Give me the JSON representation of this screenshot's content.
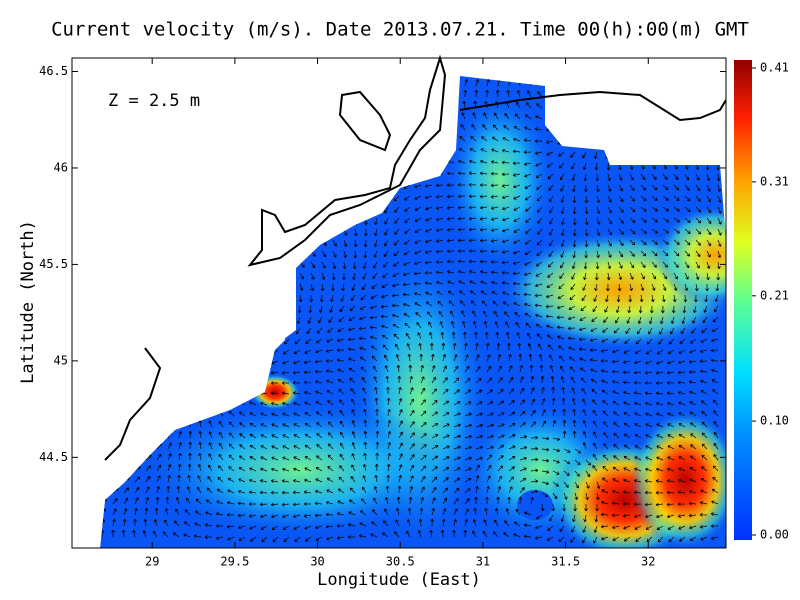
{
  "chart_data": {
    "type": "heatmap",
    "title": "Current velocity (m/s). Date 2013.07.21. Time 00(h):00(m) GMT",
    "x_label": "Longitude (East)",
    "y_label": "Latitude (North)",
    "annotation": "Z = 2.5 m",
    "xlim": [
      28.515,
      32.47
    ],
    "xticks": [
      29,
      29.5,
      30,
      30.5,
      31,
      31.5,
      32
    ],
    "ylim": [
      44.03,
      46.57
    ],
    "yticks": [
      44.5,
      45,
      45.5,
      46,
      46.5
    ],
    "colorbar": {
      "lim": [
        0,
        0.41
      ],
      "ticks": [
        {
          "value": 0,
          "label": "0.00"
        },
        {
          "value": 0.1,
          "label": "0.10"
        },
        0.21,
        0.31,
        0.41
      ]
    }
  }
}
